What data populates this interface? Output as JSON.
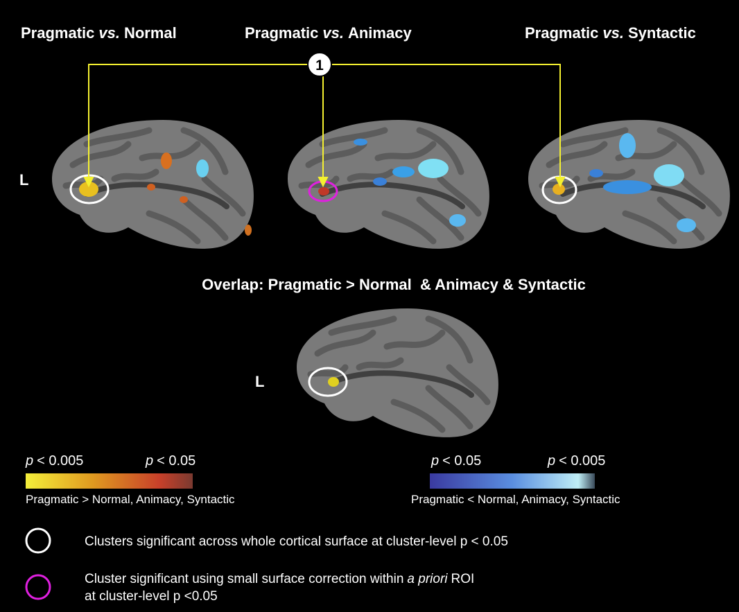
{
  "panels": [
    {
      "title": {
        "left": "Pragmatic",
        "italic": "vs.",
        "right": "Normal"
      },
      "hemisphere": "L"
    },
    {
      "title": {
        "left": "Pragmatic",
        "italic": "vs.",
        "right": "Animacy"
      }
    },
    {
      "title": {
        "left": "Pragmatic",
        "italic": "vs.",
        "right": "Syntactic"
      }
    }
  ],
  "callout": "1",
  "overlap": {
    "title": "Overlap: Pragmatic > Normal  & Animacy & Syntactic",
    "hemisphere": "L"
  },
  "colorbars": [
    {
      "low": {
        "p": "p",
        "text": "< 0.005"
      },
      "high": {
        "p": "p",
        "text": "< 0.05"
      },
      "caption": "Pragmatic > Normal, Animacy, Syntactic"
    },
    {
      "low": {
        "p": "p",
        "text": "< 0.05"
      },
      "high": {
        "p": "p",
        "text": "< 0.005"
      },
      "caption": "Pragmatic < Normal, Animacy, Syntactic"
    }
  ],
  "legend": [
    {
      "text": "Clusters significant across whole cortical surface at cluster-level p < 0.05"
    },
    {
      "line1": {
        "before": "Cluster significant using small surface correction within",
        "italic": "a priori",
        "after": "ROI"
      },
      "line2": "at cluster-level p <0.05"
    }
  ]
}
